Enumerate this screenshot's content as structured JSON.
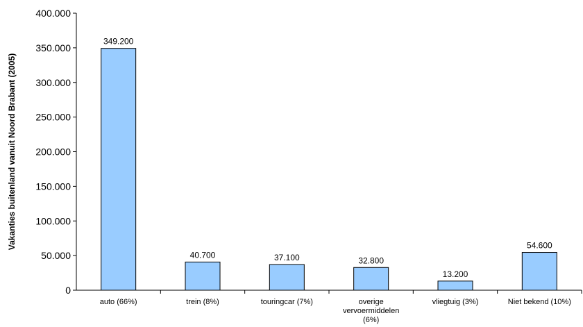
{
  "chart_data": {
    "type": "bar",
    "ylabel": "Vakanties buitenland vanuit Noord Brabant (2005)",
    "xlabel": "",
    "ylim": [
      0,
      400000
    ],
    "yticks": [
      "0",
      "50.000",
      "100.000",
      "150.000",
      "200.000",
      "250.000",
      "300.000",
      "350.000",
      "400.000"
    ],
    "ytick_values": [
      0,
      50000,
      100000,
      150000,
      200000,
      250000,
      300000,
      350000,
      400000
    ],
    "categories": [
      [
        "auto (66%)"
      ],
      [
        "trein (8%)"
      ],
      [
        "touringcar (7%)"
      ],
      [
        "overige",
        "vervoermiddelen",
        "(6%)"
      ],
      [
        "vliegtuig (3%)"
      ],
      [
        "Niet bekend (10%)"
      ]
    ],
    "values": [
      349200,
      40700,
      37100,
      32800,
      13200,
      54600
    ],
    "data_labels": [
      "349.200",
      "40.700",
      "37.100",
      "32.800",
      "13.200",
      "54.600"
    ],
    "bar_color": "#99ccff",
    "bar_edge_color": "#000000",
    "grid": false,
    "legend": false
  }
}
